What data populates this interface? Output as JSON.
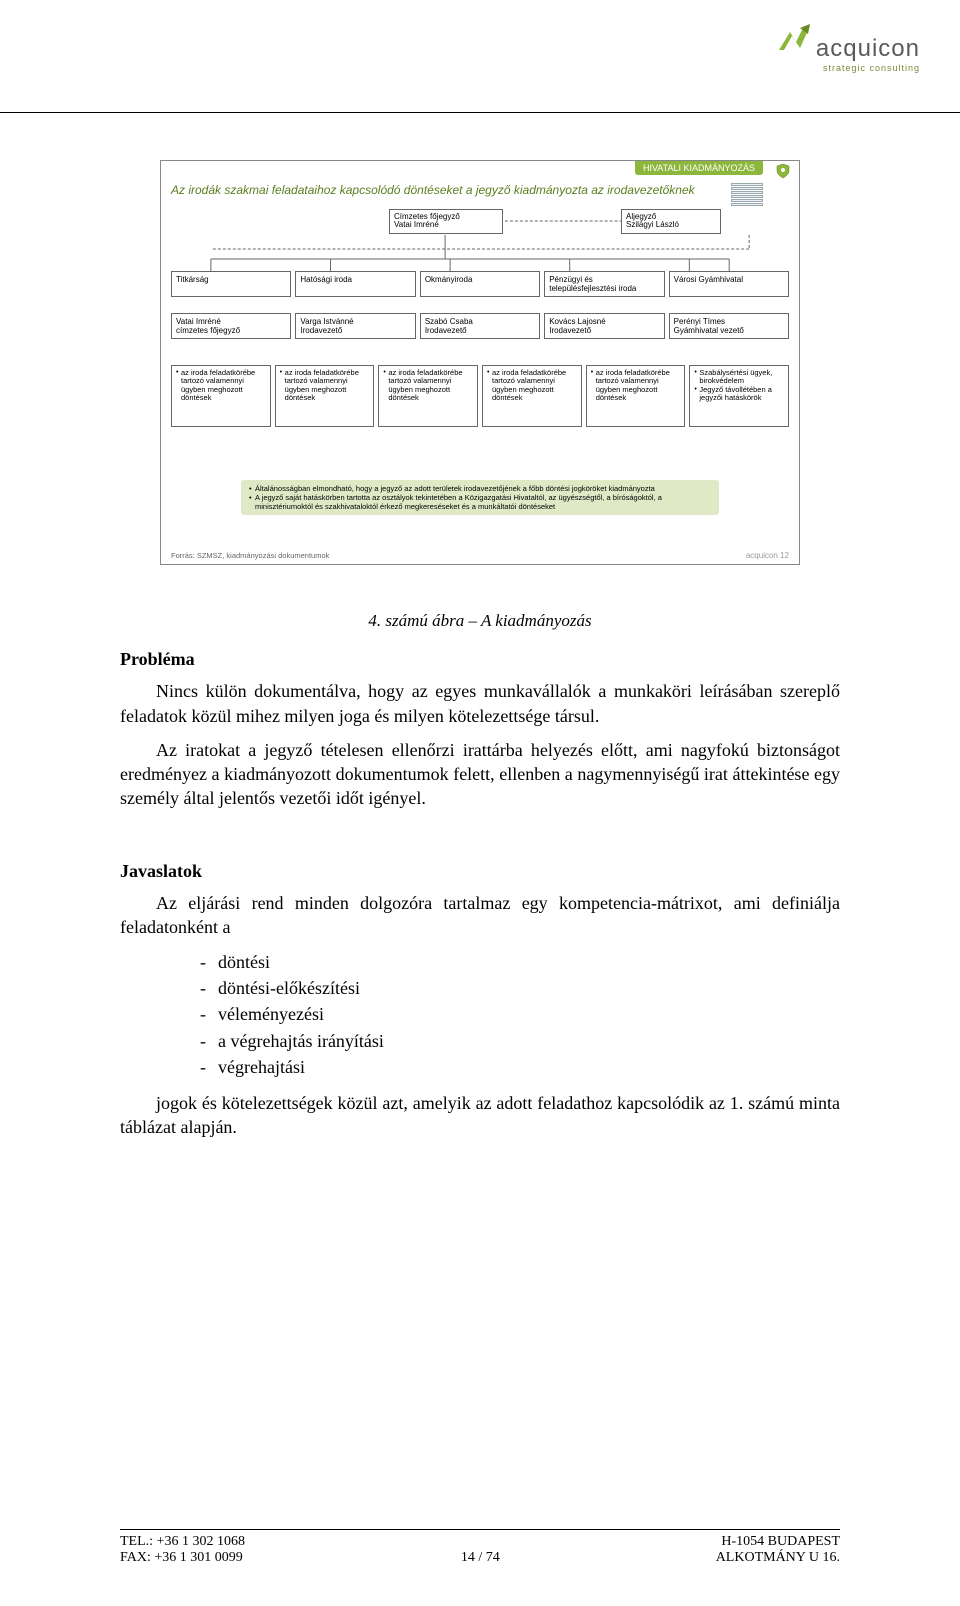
{
  "logo": {
    "name": "acquicon",
    "sub": "strategic consulting"
  },
  "slide": {
    "tag": "HIVATALI KIADMÁNYOZÁS",
    "title": "Az irodák szakmai feladataihoz kapcsolódó döntéseket a jegyző kiadmányozta az irodavezetőknek",
    "top_left": "Címzetes főjegyző\nVatai Imréné",
    "top_right": "Aljegyző\nSzilágyi László",
    "row1": [
      "Titkárság",
      "Hatósági iroda",
      "Okmányiroda",
      "Pénzügyi és településfejlesztési iroda",
      "Városi Gyámhivatal"
    ],
    "row2": [
      "Vatai Imréné\ncímzetes főjegyző",
      "Varga Istvánné\nIrodavezető",
      "Szabó Csaba\nIrodavezető",
      "Kovács Lajosné\nIrodavezető",
      "Perényi Tímes\nGyámhivatal vezető"
    ],
    "row3": [
      "az iroda feladatkörébe tartozó valamennyi ügyben meghozott döntések",
      "az iroda feladatkörébe tartozó valamennyi ügyben meghozott döntések",
      "az iroda feladatkörébe tartozó valamennyi ügyben meghozott döntések",
      "az iroda feladatkörébe tartozó valamennyi ügyben meghozott döntések",
      "az iroda feladatkörébe tartozó valamennyi ügyben meghozott döntések",
      "Szabálysértési ügyek, birokvédelem|Jegyző távollétében a jegyzői hatáskörök"
    ],
    "summary": [
      "Általánosságban elmondható, hogy a jegyző az adott területek irodavezetőjének a főbb döntési jogköröket kiadmányozta",
      "A jegyző saját hatáskörben tartotta az osztályok tekintetében a Közigazgatási Hivataltól, az ügyészségtől, a bíróságoktól, a minisztériumoktól és szakhivataloktól érkező megkereséseket és a munkáltatói döntéseket"
    ],
    "footer_left": "Forrás: SZMSZ, kiadmányozási dokumentumok",
    "footer_right": "acquicon  12"
  },
  "caption": "4.   számú ábra – A kiadmányozás",
  "h_problema": "Probléma",
  "p1": "Nincs külön dokumentálva, hogy az egyes munkavállalók a munkaköri leírásában szereplő feladatok közül mihez milyen joga és milyen kötelezettsége társul.",
  "p2": "Az iratokat a jegyző tételesen ellenőrzi irattárba helyezés előtt, ami nagyfokú biztonságot eredményez a kiadmányozott dokumentumok felett, ellenben a nagymennyiségű irat áttekintése egy személy által jelentős vezetői időt igényel.",
  "h_javaslatok": "Javaslatok",
  "p3": "Az eljárási rend minden dolgozóra tartalmaz egy kompetencia-mátrixot, ami definiálja feladatonként a",
  "list": [
    "döntési",
    "döntési-előkészítési",
    "véleményezési",
    "a végrehajtás irányítási",
    "végrehajtási"
  ],
  "p4": "jogok és kötelezettségek közül azt, amelyik az adott feladathoz kapcsolódik az 1. számú minta táblázat alapján.",
  "footer": {
    "tel": "TEL.: +36 1 302 1068",
    "fax": "FAX: +36 1 301 0099",
    "page": "14 / 74",
    "addr1": "H-1054 BUDAPEST",
    "addr2": "ALKOTMÁNY U 16."
  },
  "colors": {
    "accent": "#8cb63c",
    "accent_dark": "#5b7e1f",
    "summary_bg": "#dfe9c6"
  }
}
